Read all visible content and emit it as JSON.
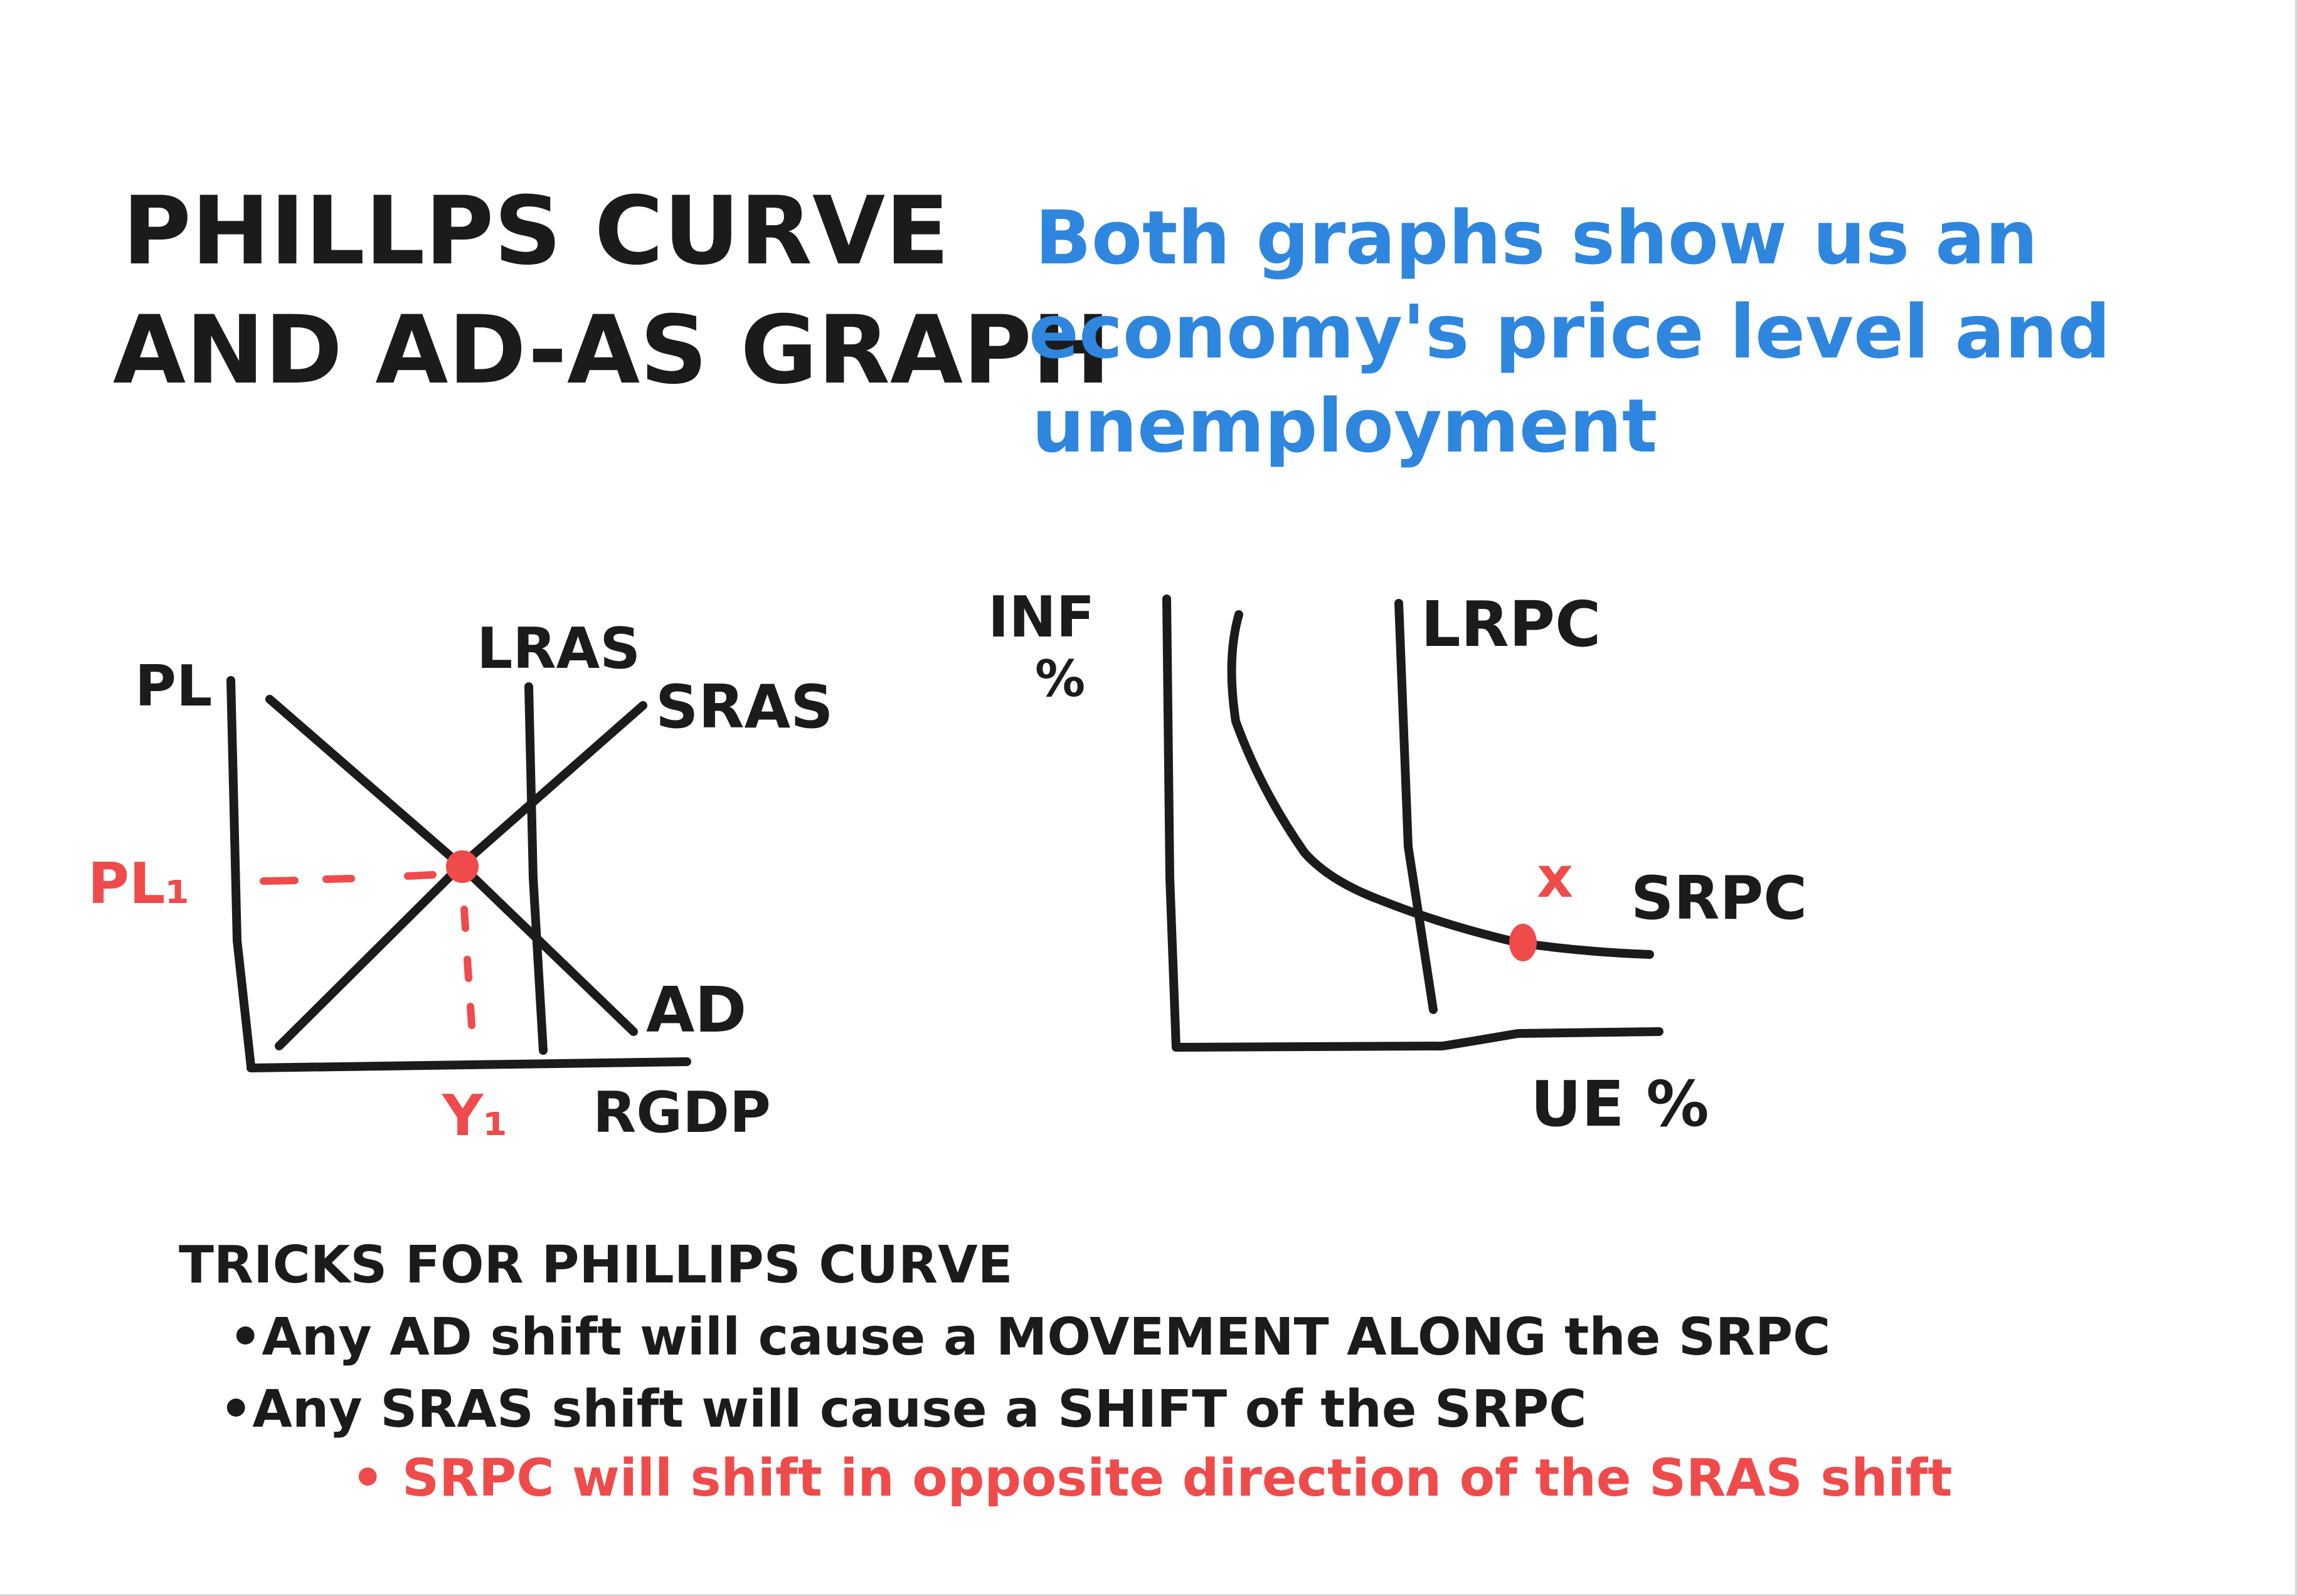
{
  "title": {
    "line1": "PHILLPS CURVE",
    "line2": "AND AD-AS GRAPH"
  },
  "note": {
    "line1": "Both graphs show us an",
    "line2": "economy's price level and",
    "line3": "unemployment"
  },
  "adas_graph": {
    "y_axis_label": "PL",
    "x_axis_label": "RGDP",
    "lras_label": "LRAS",
    "sras_label": "SRAS",
    "ad_label": "AD",
    "price_level_marker": "PL₁",
    "output_marker": "Y₁"
  },
  "phillips_graph": {
    "y_axis_label_line1": "INF",
    "y_axis_label_line2": "%",
    "x_axis_label": "UE %",
    "lrpc_label": "LRPC",
    "srpc_label": "SRPC",
    "point_marker": "x"
  },
  "tricks": {
    "heading": "TRICKS FOR PHILLIPS CURVE",
    "bullet1": "•Any AD shift will cause a MOVEMENT ALONG the SRPC",
    "bullet2": "•Any SRAS shift will cause a SHIFT of the SRPC",
    "sub_bullet": "• SRPC will shift in opposite direction of the SRAS shift"
  },
  "colors": {
    "ink": "#1b1b1b",
    "blue": "#2e86de",
    "red": "#ef4b4b"
  }
}
